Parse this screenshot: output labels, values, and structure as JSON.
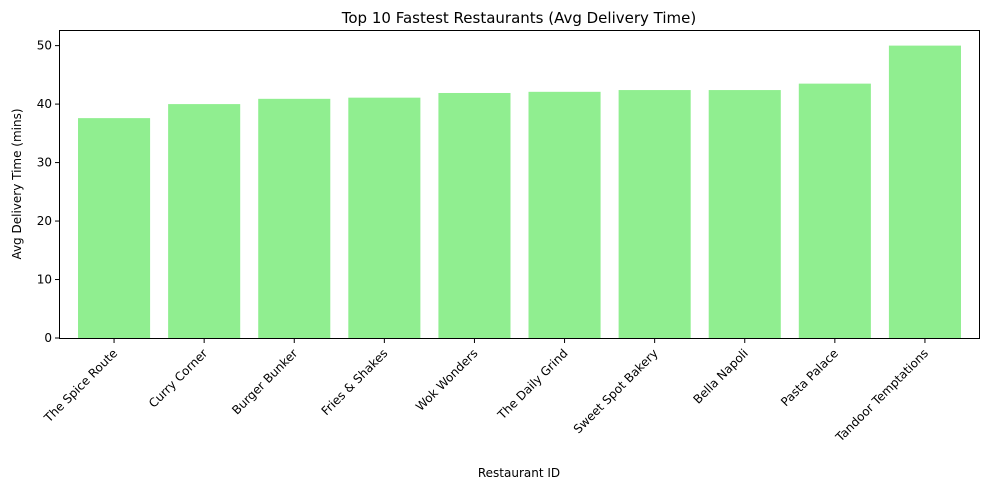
{
  "chart_data": {
    "type": "bar",
    "title": "Top 10 Fastest Restaurants (Avg Delivery Time)",
    "xlabel": "Restaurant ID",
    "ylabel": "Avg Delivery Time (mins)",
    "categories": [
      "The Spice Route",
      "Curry Corner",
      "Burger Bunker",
      "Fries & Shakes",
      "Wok Wonders",
      "The Daily Grind",
      "Sweet Spot Bakery",
      "Bella Napoli",
      "Pasta Palace",
      "Tandoor Temptations"
    ],
    "values": [
      37.6,
      40.0,
      40.9,
      41.1,
      41.9,
      42.1,
      42.4,
      42.4,
      43.5,
      50.0
    ],
    "ylim": [
      0,
      52.5
    ],
    "yticks": [
      0,
      10,
      20,
      30,
      40,
      50
    ],
    "bar_color": "#90ee90",
    "grid": false
  }
}
